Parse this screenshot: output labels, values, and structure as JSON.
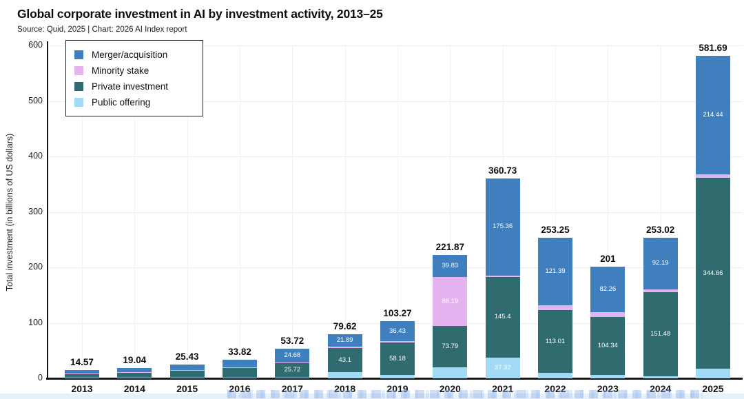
{
  "header": {
    "title": "Global corporate investment in AI by investment activity, 2013–25",
    "source_line": "Source: Quid, 2025 | Chart: 2026 AI Index report"
  },
  "legend": {
    "items": [
      {
        "label": "Merger/acquisition",
        "color": "#3f7fbe"
      },
      {
        "label": "Minority stake",
        "color": "#e5b3ef"
      },
      {
        "label": "Private investment",
        "color": "#2f6b6f"
      },
      {
        "label": "Public offering",
        "color": "#a2daf5"
      }
    ]
  },
  "chart_data": {
    "type": "bar",
    "stacked": true,
    "title": "Global corporate investment in AI by investment activity, 2013–25",
    "xlabel": "",
    "ylabel": "Total investment (in billions of US dollars)",
    "ylim": [
      0,
      600
    ],
    "yticks": [
      0,
      100,
      200,
      300,
      400,
      500,
      600
    ],
    "grid": true,
    "legend_position": "top-left",
    "categories": [
      "2013",
      "2014",
      "2015",
      "2016",
      "2017",
      "2018",
      "2019",
      "2020",
      "2021",
      "2022",
      "2023",
      "2024",
      "2025"
    ],
    "totals": [
      14.57,
      19.04,
      25.43,
      33.82,
      53.72,
      79.62,
      103.27,
      221.87,
      360.73,
      253.25,
      201,
      253.02,
      581.69
    ],
    "total_labels": [
      "14.57",
      "19.04",
      "25.43",
      "33.82",
      "53.72",
      "79.62",
      "103.27",
      "221.87",
      "360.73",
      "253.25",
      "201",
      "253.02",
      "581.69"
    ],
    "stack_order": "bottom-to-top",
    "series": [
      {
        "name": "Public offering",
        "color": "#a2daf5",
        "values": [
          1.07,
          1.04,
          1.03,
          1.22,
          1.52,
          11.3,
          6.2,
          20.06,
          37.32,
          9.45,
          6.1,
          3.35,
          16.99
        ],
        "labels": [
          null,
          null,
          null,
          null,
          null,
          null,
          null,
          null,
          "37.32",
          null,
          null,
          null,
          null
        ]
      },
      {
        "name": "Private investment",
        "color": "#2f6b6f",
        "values": [
          6.5,
          9.5,
          13,
          17,
          25.72,
          43.1,
          58.18,
          73.79,
          145.4,
          113.01,
          104.34,
          151.48,
          344.66
        ],
        "labels": [
          null,
          null,
          null,
          null,
          "25.72",
          "43.1",
          "58.18",
          "73.79",
          "145.4",
          "113.01",
          "104.34",
          "151.48",
          "344.66"
        ]
      },
      {
        "name": "Minority stake",
        "color": "#e5b3ef",
        "values": [
          1.5,
          1,
          1.4,
          2,
          1.8,
          3.33,
          2.46,
          88.19,
          2.65,
          9.4,
          8.3,
          6,
          5.6
        ],
        "labels": [
          null,
          null,
          null,
          null,
          null,
          null,
          null,
          "88.19",
          null,
          null,
          null,
          null,
          null
        ]
      },
      {
        "name": "Merger/acquisition",
        "color": "#3f7fbe",
        "values": [
          5.5,
          7.5,
          10,
          13.6,
          24.68,
          21.89,
          36.43,
          39.83,
          175.36,
          121.39,
          82.26,
          92.19,
          214.44
        ],
        "labels": [
          null,
          null,
          null,
          null,
          "24.68",
          "21.89",
          "36.43",
          "39.83",
          "175.36",
          "121.39",
          "82.26",
          "92.19",
          "214.44"
        ]
      }
    ]
  }
}
